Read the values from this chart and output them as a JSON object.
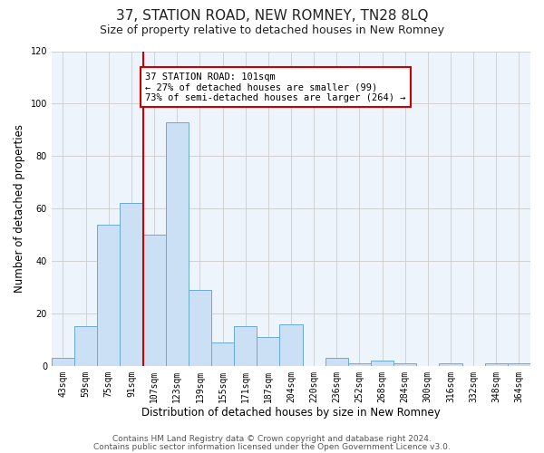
{
  "title": "37, STATION ROAD, NEW ROMNEY, TN28 8LQ",
  "subtitle": "Size of property relative to detached houses in New Romney",
  "xlabel": "Distribution of detached houses by size in New Romney",
  "ylabel": "Number of detached properties",
  "bar_labels": [
    "43sqm",
    "59sqm",
    "75sqm",
    "91sqm",
    "107sqm",
    "123sqm",
    "139sqm",
    "155sqm",
    "171sqm",
    "187sqm",
    "204sqm",
    "220sqm",
    "236sqm",
    "252sqm",
    "268sqm",
    "284sqm",
    "300sqm",
    "316sqm",
    "332sqm",
    "348sqm",
    "364sqm"
  ],
  "bar_values": [
    3,
    15,
    54,
    62,
    50,
    93,
    29,
    9,
    15,
    11,
    16,
    0,
    3,
    1,
    2,
    1,
    0,
    1,
    0,
    1,
    1
  ],
  "bar_color": "#cce0f5",
  "bar_edgecolor": "#6aaad4",
  "bar_linewidth": 0.7,
  "vline_color": "#cc0000",
  "vline_xindex": 3.5,
  "annotation_title": "37 STATION ROAD: 101sqm",
  "annotation_line1": "← 27% of detached houses are smaller (99)",
  "annotation_line2": "73% of semi-detached houses are larger (264) →",
  "annotation_box_color": "#ffffff",
  "annotation_box_edgecolor": "#cc0000",
  "ylim": [
    0,
    120
  ],
  "yticks": [
    0,
    20,
    40,
    60,
    80,
    100,
    120
  ],
  "grid_color": "#cccccc",
  "background_color": "#ffffff",
  "plot_bg_color": "#eef4fb",
  "footer1": "Contains HM Land Registry data © Crown copyright and database right 2024.",
  "footer2": "Contains public sector information licensed under the Open Government Licence v3.0.",
  "title_fontsize": 11,
  "subtitle_fontsize": 9,
  "xlabel_fontsize": 8.5,
  "ylabel_fontsize": 8.5,
  "tick_fontsize": 7,
  "footer_fontsize": 6.5
}
